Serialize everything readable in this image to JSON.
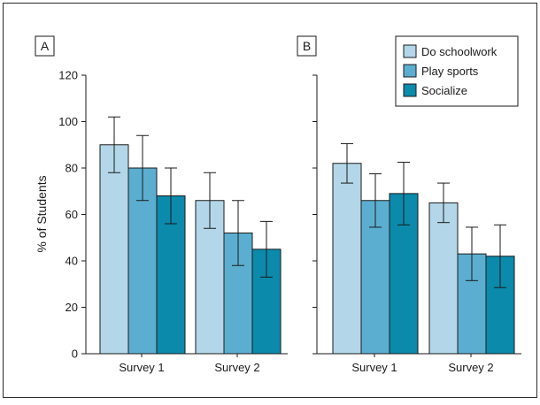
{
  "chart_data": {
    "type": "bar",
    "ylabel": "% of Students",
    "ylim": [
      0,
      120
    ],
    "yticks": [
      "0",
      "20",
      "40",
      "60",
      "80",
      "100",
      "120"
    ],
    "categories": [
      "Survey 1",
      "Survey 2"
    ],
    "legend_position": "top-right of panel B",
    "series_colors": [
      "#b3d7e8",
      "#5caed0",
      "#0b8aac"
    ],
    "legend": [
      "Do schoolwork",
      "Play sports",
      "Socialize"
    ],
    "panels": [
      {
        "tag": "A",
        "series": [
          {
            "name": "Do schoolwork",
            "values": [
              90,
              66
            ],
            "errors": [
              12,
              12
            ]
          },
          {
            "name": "Play sports",
            "values": [
              80,
              52
            ],
            "errors": [
              14,
              14
            ]
          },
          {
            "name": "Socialize",
            "values": [
              68,
              45
            ],
            "errors": [
              12,
              12
            ]
          }
        ]
      },
      {
        "tag": "B",
        "series": [
          {
            "name": "Do schoolwork",
            "values": [
              82,
              65
            ],
            "errors": [
              8.5,
              8.5
            ]
          },
          {
            "name": "Play sports",
            "values": [
              66,
              43
            ],
            "errors": [
              11.5,
              11.5
            ]
          },
          {
            "name": "Socialize",
            "values": [
              69,
              42
            ],
            "errors": [
              13.5,
              13.5
            ]
          }
        ]
      }
    ]
  }
}
